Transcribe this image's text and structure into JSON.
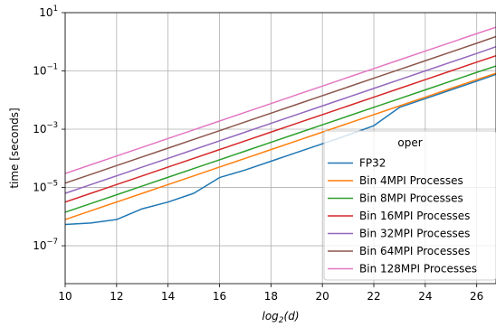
{
  "chart_data": {
    "type": "line",
    "xlabel": "log2(d)",
    "xlabel_math": {
      "base": "log",
      "sub": "2",
      "arg": "(d)"
    },
    "ylabel": "time [seconds]",
    "xlim": [
      10,
      26.75
    ],
    "ylim_exp": [
      -8.3,
      1
    ],
    "yscale": "log",
    "x_ticks": [
      "10",
      "12",
      "14",
      "16",
      "18",
      "20",
      "22",
      "24",
      "26"
    ],
    "y_ticks": [
      {
        "base": "10",
        "exp": "1"
      },
      {
        "base": "10",
        "exp": "−1"
      },
      {
        "base": "10",
        "exp": "−3"
      },
      {
        "base": "10",
        "exp": "−5"
      },
      {
        "base": "10",
        "exp": "−7"
      }
    ],
    "grid": true,
    "legend": {
      "title": "oper",
      "position": "lower right"
    },
    "x": [
      10,
      11,
      12,
      13,
      14,
      15,
      16,
      17,
      18,
      19,
      20,
      21,
      22,
      23,
      24,
      25,
      26,
      26.75
    ],
    "series": [
      {
        "name": "FP32",
        "color": "#1f77b4",
        "log10_y": [
          -6.27,
          -6.22,
          -6.1,
          -5.73,
          -5.5,
          -5.2,
          -4.66,
          -4.4,
          -4.1,
          -3.8,
          -3.5,
          -3.2,
          -2.88,
          -2.25,
          -1.95,
          -1.65,
          -1.35,
          -1.12
        ]
      },
      {
        "name": "Bin 4MPI Processes",
        "color": "#ff7f0e",
        "log10_y": [
          -6.1,
          -5.8,
          -5.5,
          -5.2,
          -4.9,
          -4.6,
          -4.3,
          -4.0,
          -3.7,
          -3.4,
          -3.1,
          -2.8,
          -2.5,
          -2.2,
          -1.9,
          -1.6,
          -1.3,
          -1.08
        ]
      },
      {
        "name": "Bin 8MPI Processes",
        "color": "#2ca02c",
        "log10_y": [
          -5.85,
          -5.55,
          -5.25,
          -4.95,
          -4.65,
          -4.35,
          -4.05,
          -3.75,
          -3.45,
          -3.15,
          -2.85,
          -2.55,
          -2.25,
          -1.95,
          -1.65,
          -1.35,
          -1.05,
          -0.83
        ]
      },
      {
        "name": "Bin 16MPI Processes",
        "color": "#d62728",
        "log10_y": [
          -5.5,
          -5.2,
          -4.9,
          -4.6,
          -4.3,
          -4.0,
          -3.7,
          -3.4,
          -3.1,
          -2.8,
          -2.5,
          -2.2,
          -1.9,
          -1.6,
          -1.3,
          -1.0,
          -0.7,
          -0.48
        ]
      },
      {
        "name": "Bin 32MPI Processes",
        "color": "#9467bd",
        "log10_y": [
          -5.2,
          -4.9,
          -4.6,
          -4.3,
          -4.0,
          -3.7,
          -3.4,
          -3.1,
          -2.8,
          -2.5,
          -2.2,
          -1.9,
          -1.6,
          -1.3,
          -1.0,
          -0.7,
          -0.4,
          -0.17
        ]
      },
      {
        "name": "Bin 64MPI Processes",
        "color": "#8c564b",
        "log10_y": [
          -4.85,
          -4.55,
          -4.25,
          -3.95,
          -3.65,
          -3.35,
          -3.05,
          -2.75,
          -2.45,
          -2.15,
          -1.85,
          -1.55,
          -1.25,
          -0.95,
          -0.65,
          -0.35,
          -0.05,
          0.18
        ]
      },
      {
        "name": "Bin 128MPI Processes",
        "color": "#e377c2",
        "log10_y": [
          -4.52,
          -4.22,
          -3.92,
          -3.62,
          -3.32,
          -3.02,
          -2.72,
          -2.42,
          -2.12,
          -1.82,
          -1.52,
          -1.22,
          -0.92,
          -0.62,
          -0.32,
          -0.02,
          0.28,
          0.5
        ]
      }
    ]
  }
}
